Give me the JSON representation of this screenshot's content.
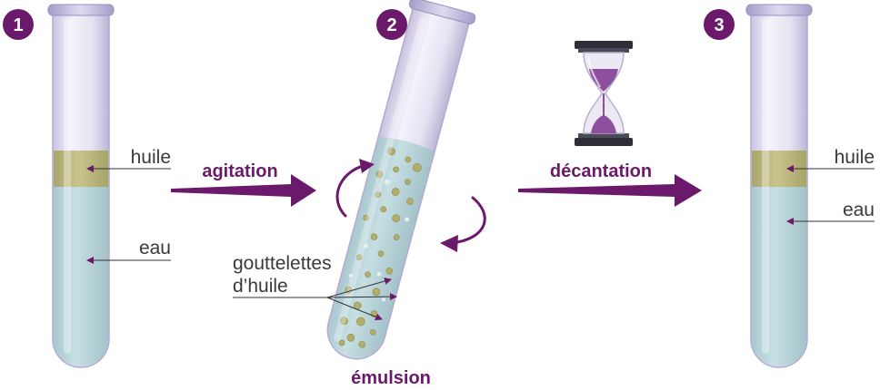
{
  "steps": [
    {
      "number": "1"
    },
    {
      "number": "2"
    },
    {
      "number": "3"
    }
  ],
  "labels": {
    "oil_1": "huile",
    "water_1": "eau",
    "agitation": "agitation",
    "droplets_line1": "gouttelettes",
    "droplets_line2": "d’huile",
    "emulsion": "émulsion",
    "decantation": "décantation",
    "oil_3": "huile",
    "water_3": "eau"
  },
  "colors": {
    "accent": "#6b1a6b",
    "water": "#b9d6db",
    "oil": "#b8b47a",
    "glass": "#d9d3ea",
    "sand": "#8e4f9e"
  },
  "icons": {
    "hourglass": "hourglass-icon",
    "rotation": "rotation-arrows-icon"
  }
}
